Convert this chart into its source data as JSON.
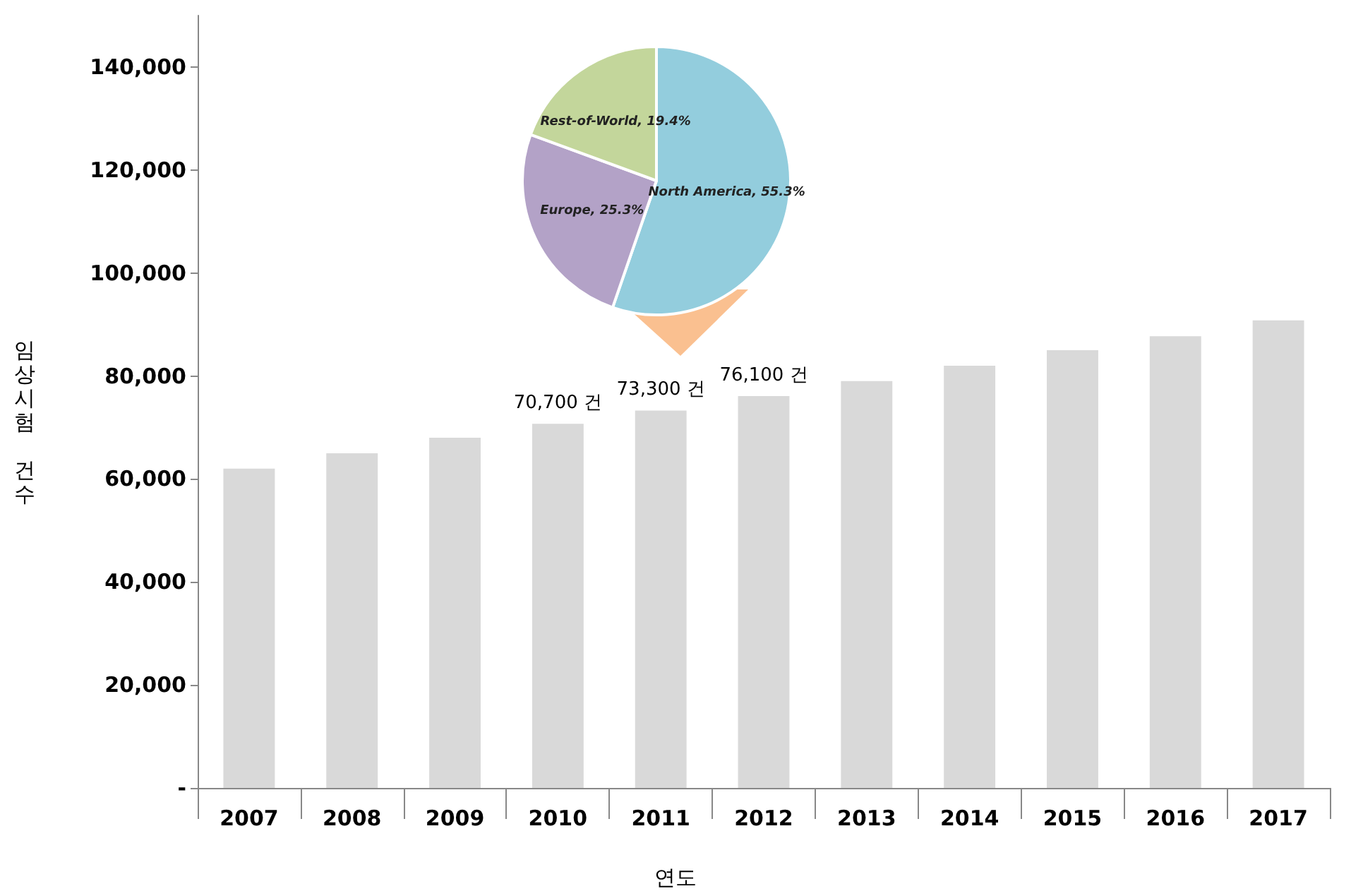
{
  "chart_data": [
    {
      "type": "bar",
      "xlabel": "연도",
      "ylabel": "임상시험 건수",
      "categories": [
        "2007",
        "2008",
        "2009",
        "2010",
        "2011",
        "2012",
        "2013",
        "2014",
        "2015",
        "2016",
        "2017"
      ],
      "values": [
        62000,
        65000,
        68000,
        70700,
        73300,
        76100,
        79000,
        82000,
        85000,
        87700,
        90800
      ],
      "value_labels": [
        null,
        null,
        null,
        "70,700 건",
        "73,300 건",
        "76,100 건",
        null,
        null,
        null,
        null,
        null
      ],
      "color": "#d9d9d9",
      "ylim": [
        0,
        150000
      ],
      "yticks": [
        {
          "value": 0,
          "label": "-"
        },
        {
          "value": 20000,
          "label": "20,000"
        },
        {
          "value": 40000,
          "label": "40,000"
        },
        {
          "value": 60000,
          "label": "60,000"
        },
        {
          "value": 80000,
          "label": "80,000"
        },
        {
          "value": 100000,
          "label": "100,000"
        },
        {
          "value": 120000,
          "label": "120,000"
        },
        {
          "value": 140000,
          "label": "140,000"
        }
      ],
      "grid": false,
      "legend": false
    },
    {
      "type": "pie",
      "categories": [
        "North America",
        "Europe",
        "Rest-of-World"
      ],
      "values": [
        55.3,
        25.3,
        19.4
      ],
      "value_labels": [
        "55.3%",
        "25.3%",
        "19.4%"
      ],
      "colors": [
        "#93cddd",
        "#b3a2c7",
        "#c3d69b"
      ],
      "legend": false
    }
  ]
}
